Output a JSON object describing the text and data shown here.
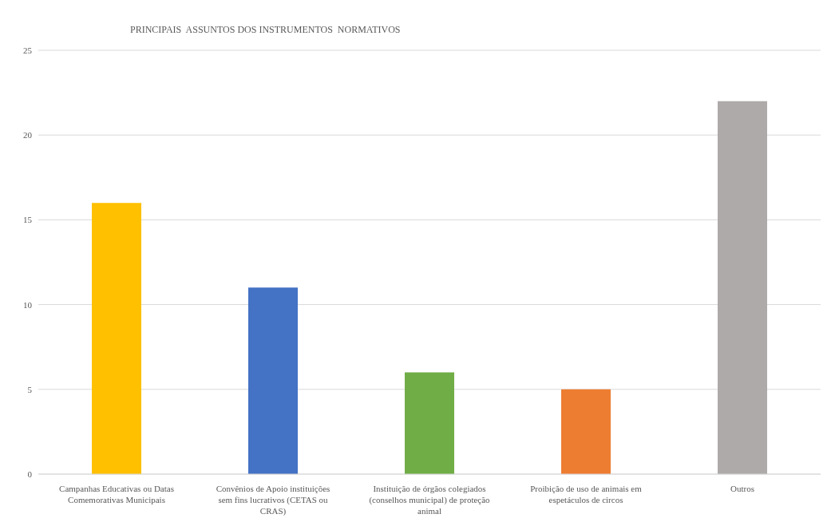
{
  "chart_data": {
    "type": "bar",
    "title": "PRINCIPAIS  ASSUNTOS DOS INSTRUMENTOS  NORMATIVOS",
    "categories": [
      "Campanhas Educativas ou Datas Comemorativas Municipais",
      "Convênios de Apoio instituições sem fins lucrativos (CETAS ou CRAS)",
      "Instituição de órgãos colegiados (conselhos municipal) de proteção animal",
      "Proibição de uso de animais em espetáculos de circos",
      "Outros"
    ],
    "values": [
      16,
      11,
      6,
      5,
      22
    ],
    "colors": [
      "#ffc000",
      "#4472c4",
      "#70ad47",
      "#ed7d31",
      "#aeaaaa"
    ],
    "ylim": [
      0,
      25
    ],
    "yticks": [
      0,
      5,
      10,
      15,
      20,
      25
    ],
    "grid": "y",
    "legend": false
  }
}
